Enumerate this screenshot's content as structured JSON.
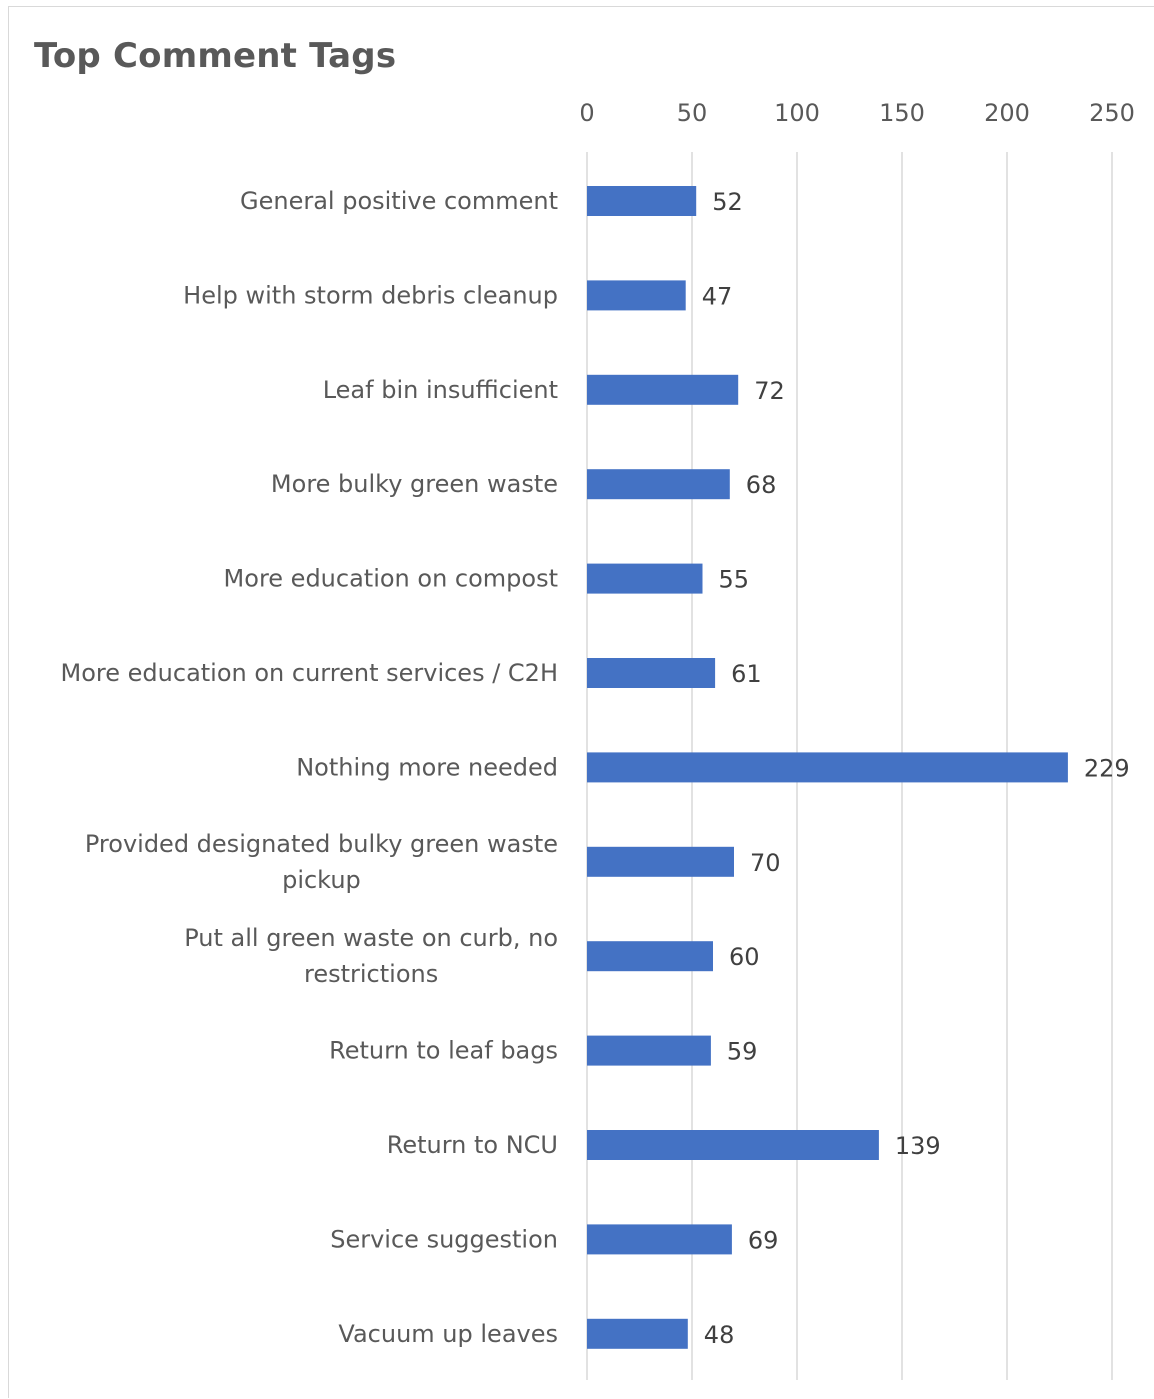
{
  "chart_data": {
    "type": "bar",
    "orientation": "horizontal",
    "title": "Top Comment Tags",
    "categories": [
      "General positive comment",
      "Help with storm debris cleanup",
      "Leaf bin insufficient",
      "More bulky green waste",
      "More education on compost",
      "More education on current services / C2H",
      "Nothing more needed",
      "Provided designated bulky green waste pickup",
      "Put all green waste on curb, no restrictions",
      "Return to leaf bags",
      "Return to NCU",
      "Service suggestion",
      "Vacuum up leaves"
    ],
    "values": [
      52,
      47,
      72,
      68,
      55,
      61,
      229,
      70,
      60,
      59,
      139,
      69,
      48
    ],
    "xlim": [
      0,
      250
    ],
    "xticks": [
      "0",
      "50",
      "100",
      "150",
      "200",
      "250"
    ],
    "xaxis_position": "top",
    "grid": true,
    "legend": "none",
    "bar_color": "#4472C4"
  }
}
